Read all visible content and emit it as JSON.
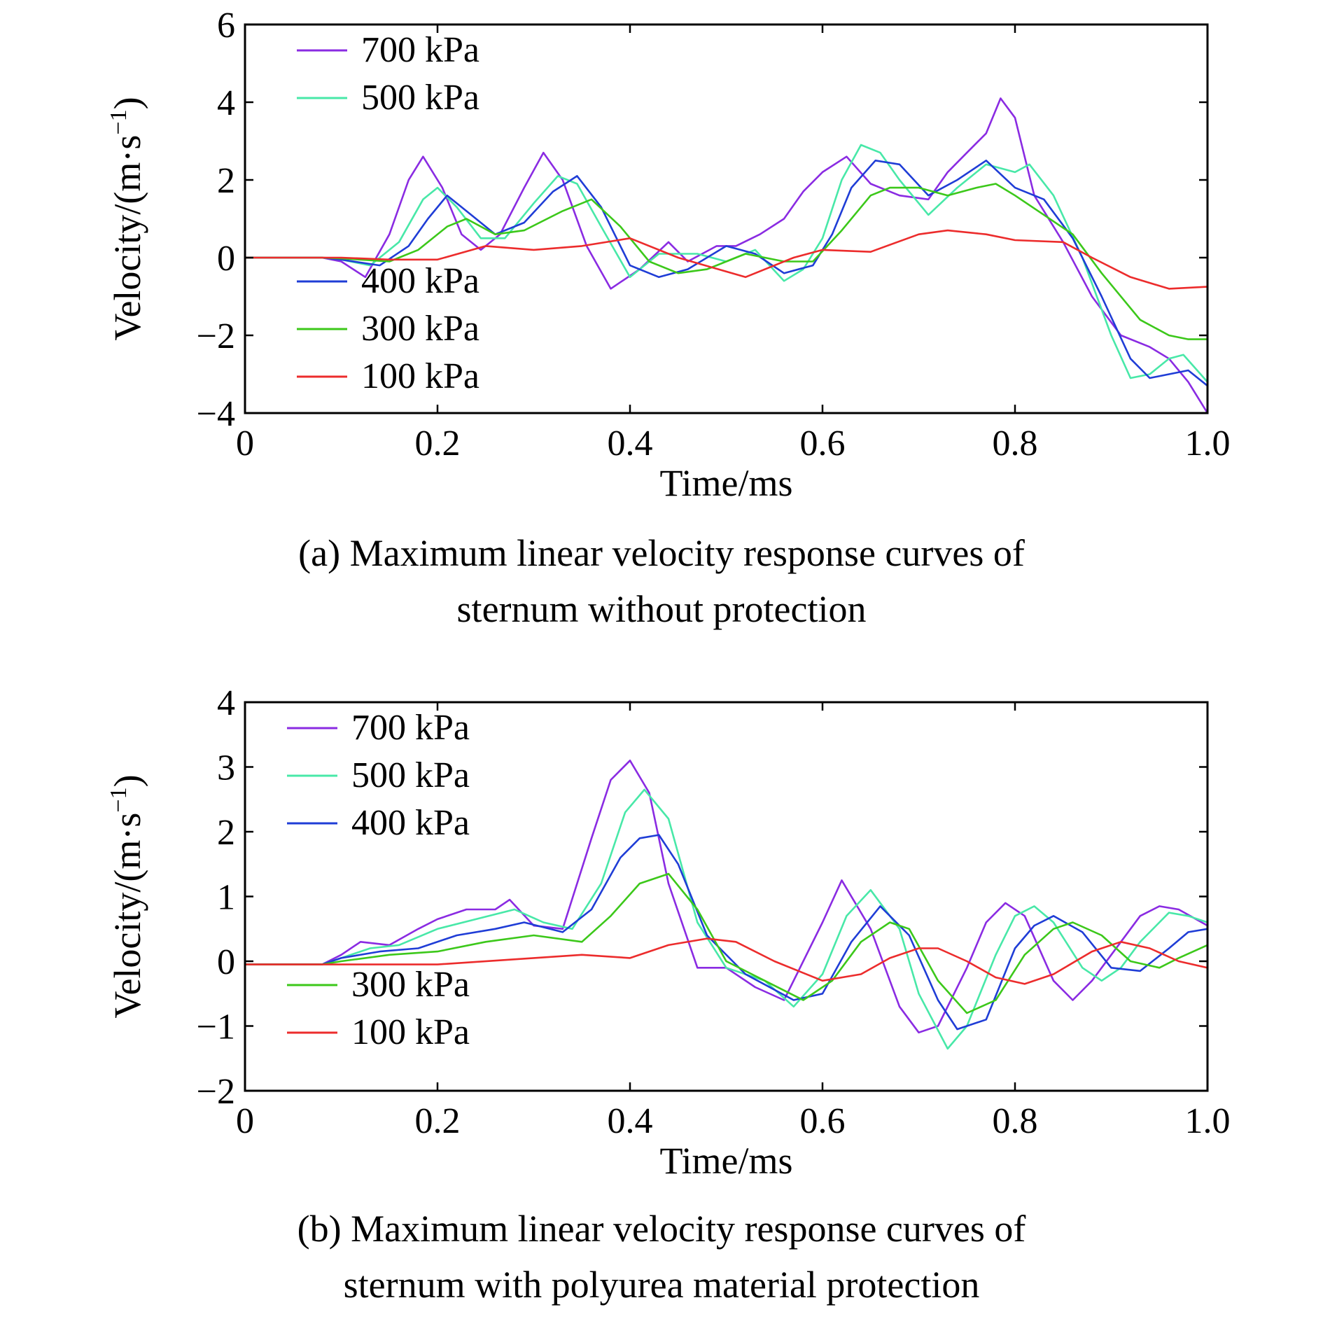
{
  "chart_data": [
    {
      "type": "line",
      "caption": [
        "(a) Maximum linear velocity response curves of",
        "sternum without protection"
      ],
      "xlabel": "Time/ms",
      "ylabel": "Velocity/(m·s",
      "ylabel_sup": "−1",
      "ylabel_close": ")",
      "xlim": [
        0,
        1.0
      ],
      "ylim": [
        -4,
        6
      ],
      "xticks": [
        0,
        0.2,
        0.4,
        0.6,
        0.8,
        1.0
      ],
      "xtick_labels": [
        "0",
        "0.2",
        "0.4",
        "0.6",
        "0.8",
        "1.0"
      ],
      "yticks": [
        -4,
        -2,
        0,
        2,
        4,
        6
      ],
      "ytick_labels": [
        "−4",
        "−2",
        "0",
        "2",
        "4",
        "6"
      ],
      "grid": false,
      "legend_groups": [
        {
          "placement": "top-left",
          "items": [
            "700 kPa",
            "500 kPa"
          ]
        },
        {
          "placement": "bottom-left",
          "items": [
            "400 kPa",
            "300 kPa",
            "100 kPa"
          ]
        }
      ],
      "series": [
        {
          "name": "700 kPa",
          "color": "#8a2be2",
          "x": [
            0,
            0.08,
            0.1,
            0.125,
            0.15,
            0.17,
            0.185,
            0.205,
            0.225,
            0.245,
            0.265,
            0.29,
            0.31,
            0.33,
            0.355,
            0.38,
            0.41,
            0.44,
            0.46,
            0.49,
            0.51,
            0.535,
            0.56,
            0.58,
            0.6,
            0.625,
            0.65,
            0.68,
            0.71,
            0.73,
            0.75,
            0.77,
            0.785,
            0.8,
            0.82,
            0.85,
            0.88,
            0.91,
            0.94,
            0.96,
            0.98,
            1.0
          ],
          "y": [
            0,
            0,
            -0.1,
            -0.5,
            0.6,
            2.0,
            2.6,
            1.8,
            0.6,
            0.2,
            0.6,
            1.8,
            2.7,
            2.0,
            0.3,
            -0.8,
            -0.3,
            0.4,
            -0.1,
            0.3,
            0.3,
            0.6,
            1.0,
            1.7,
            2.2,
            2.6,
            1.9,
            1.6,
            1.5,
            2.2,
            2.7,
            3.2,
            4.1,
            3.6,
            1.6,
            0.4,
            -1.0,
            -2.0,
            -2.3,
            -2.6,
            -3.2,
            -4.0
          ]
        },
        {
          "name": "500 kPa",
          "color": "#48e8a8",
          "x": [
            0,
            0.08,
            0.1,
            0.13,
            0.16,
            0.185,
            0.2,
            0.22,
            0.245,
            0.27,
            0.3,
            0.325,
            0.345,
            0.37,
            0.4,
            0.43,
            0.47,
            0.5,
            0.53,
            0.56,
            0.58,
            0.6,
            0.62,
            0.64,
            0.66,
            0.68,
            0.71,
            0.74,
            0.77,
            0.8,
            0.815,
            0.84,
            0.87,
            0.9,
            0.92,
            0.94,
            0.96,
            0.975,
            1.0
          ],
          "y": [
            0,
            0,
            -0.05,
            -0.2,
            0.4,
            1.5,
            1.8,
            1.3,
            0.5,
            0.5,
            1.4,
            2.1,
            1.9,
            0.8,
            -0.5,
            0.1,
            0.1,
            -0.1,
            0.2,
            -0.6,
            -0.3,
            0.5,
            2.0,
            2.9,
            2.7,
            2.0,
            1.1,
            1.8,
            2.4,
            2.2,
            2.4,
            1.6,
            0.0,
            -2.0,
            -3.1,
            -3.0,
            -2.6,
            -2.5,
            -3.2
          ]
        },
        {
          "name": "400 kPa",
          "color": "#1f3dd6",
          "x": [
            0,
            0.08,
            0.1,
            0.14,
            0.17,
            0.19,
            0.21,
            0.235,
            0.26,
            0.29,
            0.32,
            0.345,
            0.37,
            0.4,
            0.43,
            0.46,
            0.5,
            0.53,
            0.56,
            0.59,
            0.61,
            0.63,
            0.655,
            0.68,
            0.71,
            0.74,
            0.77,
            0.8,
            0.83,
            0.86,
            0.89,
            0.92,
            0.94,
            0.96,
            0.98,
            1.0
          ],
          "y": [
            0,
            0,
            -0.05,
            -0.2,
            0.3,
            1.0,
            1.6,
            1.1,
            0.6,
            0.9,
            1.7,
            2.1,
            1.3,
            -0.2,
            -0.5,
            -0.3,
            0.3,
            0.1,
            -0.4,
            -0.2,
            0.6,
            1.8,
            2.5,
            2.4,
            1.6,
            2.0,
            2.5,
            1.8,
            1.5,
            0.5,
            -1.0,
            -2.6,
            -3.1,
            -3.0,
            -2.9,
            -3.3
          ]
        },
        {
          "name": "300 kPa",
          "color": "#3cc81a",
          "x": [
            0,
            0.08,
            0.1,
            0.15,
            0.18,
            0.21,
            0.23,
            0.26,
            0.29,
            0.33,
            0.36,
            0.39,
            0.42,
            0.45,
            0.48,
            0.52,
            0.56,
            0.59,
            0.62,
            0.65,
            0.67,
            0.7,
            0.73,
            0.76,
            0.78,
            0.8,
            0.83,
            0.86,
            0.89,
            0.93,
            0.96,
            0.98,
            1.0
          ],
          "y": [
            0,
            0,
            -0.02,
            -0.1,
            0.2,
            0.8,
            1.0,
            0.6,
            0.7,
            1.2,
            1.5,
            0.8,
            -0.1,
            -0.4,
            -0.3,
            0.1,
            -0.1,
            -0.1,
            0.7,
            1.6,
            1.8,
            1.8,
            1.6,
            1.8,
            1.9,
            1.6,
            1.1,
            0.6,
            -0.4,
            -1.6,
            -2.0,
            -2.1,
            -2.1
          ]
        },
        {
          "name": "100 kPa",
          "color": "#ec2c2c",
          "x": [
            0,
            0.1,
            0.15,
            0.2,
            0.25,
            0.3,
            0.35,
            0.4,
            0.45,
            0.52,
            0.57,
            0.6,
            0.65,
            0.7,
            0.73,
            0.77,
            0.8,
            0.85,
            0.88,
            0.92,
            0.96,
            1.0
          ],
          "y": [
            0,
            0,
            -0.05,
            -0.05,
            0.3,
            0.2,
            0.3,
            0.5,
            0.0,
            -0.5,
            0.0,
            0.2,
            0.15,
            0.6,
            0.7,
            0.6,
            0.45,
            0.4,
            0.0,
            -0.5,
            -0.8,
            -0.75
          ]
        }
      ]
    },
    {
      "type": "line",
      "caption": [
        "(b) Maximum linear velocity response curves of",
        "sternum with polyurea material protection"
      ],
      "xlabel": "Time/ms",
      "ylabel": "Velocity/(m·s",
      "ylabel_sup": "−1",
      "ylabel_close": ")",
      "xlim": [
        0,
        1.0
      ],
      "ylim": [
        -2,
        4
      ],
      "xticks": [
        0,
        0.2,
        0.4,
        0.6,
        0.8,
        1.0
      ],
      "xtick_labels": [
        "0",
        "0.2",
        "0.4",
        "0.6",
        "0.8",
        "1.0"
      ],
      "yticks": [
        -2,
        -1,
        0,
        1,
        2,
        3,
        4
      ],
      "ytick_labels": [
        "−2",
        "−1",
        "0",
        "1",
        "2",
        "3",
        "4"
      ],
      "grid": false,
      "legend_groups": [
        {
          "placement": "top-left",
          "items": [
            "700 kPa",
            "500 kPa",
            "400 kPa"
          ]
        },
        {
          "placement": "bottom-left",
          "items": [
            "300 kPa",
            "100 kPa"
          ]
        }
      ],
      "series": [
        {
          "name": "700 kPa",
          "color": "#8a2be2",
          "x": [
            0,
            0.08,
            0.1,
            0.12,
            0.15,
            0.18,
            0.2,
            0.23,
            0.26,
            0.275,
            0.3,
            0.33,
            0.36,
            0.38,
            0.4,
            0.42,
            0.44,
            0.47,
            0.5,
            0.53,
            0.56,
            0.6,
            0.62,
            0.65,
            0.68,
            0.7,
            0.72,
            0.75,
            0.77,
            0.79,
            0.81,
            0.84,
            0.86,
            0.88,
            0.91,
            0.93,
            0.95,
            0.97,
            1.0
          ],
          "y": [
            -0.05,
            -0.05,
            0.1,
            0.3,
            0.25,
            0.5,
            0.65,
            0.8,
            0.8,
            0.95,
            0.55,
            0.5,
            1.9,
            2.8,
            3.1,
            2.6,
            1.2,
            -0.1,
            -0.1,
            -0.4,
            -0.6,
            0.6,
            1.25,
            0.5,
            -0.7,
            -1.1,
            -1.0,
            -0.1,
            0.6,
            0.9,
            0.7,
            -0.3,
            -0.6,
            -0.3,
            0.3,
            0.7,
            0.85,
            0.8,
            0.55
          ]
        },
        {
          "name": "500 kPa",
          "color": "#48e8a8",
          "x": [
            0,
            0.08,
            0.1,
            0.13,
            0.16,
            0.2,
            0.24,
            0.28,
            0.31,
            0.34,
            0.37,
            0.395,
            0.415,
            0.44,
            0.47,
            0.5,
            0.54,
            0.57,
            0.6,
            0.625,
            0.65,
            0.68,
            0.7,
            0.73,
            0.75,
            0.78,
            0.8,
            0.82,
            0.84,
            0.87,
            0.89,
            0.91,
            0.93,
            0.96,
            0.98,
            1.0
          ],
          "y": [
            -0.05,
            -0.05,
            0.05,
            0.2,
            0.25,
            0.5,
            0.65,
            0.8,
            0.6,
            0.5,
            1.2,
            2.3,
            2.65,
            2.2,
            0.6,
            -0.1,
            -0.3,
            -0.7,
            -0.2,
            0.7,
            1.1,
            0.5,
            -0.5,
            -1.35,
            -1.0,
            0.1,
            0.7,
            0.85,
            0.6,
            -0.1,
            -0.3,
            -0.1,
            0.3,
            0.75,
            0.7,
            0.6
          ]
        },
        {
          "name": "400 kPa",
          "color": "#1f3dd6",
          "x": [
            0,
            0.08,
            0.1,
            0.14,
            0.18,
            0.22,
            0.26,
            0.29,
            0.33,
            0.36,
            0.39,
            0.41,
            0.43,
            0.45,
            0.48,
            0.52,
            0.57,
            0.6,
            0.63,
            0.66,
            0.69,
            0.72,
            0.74,
            0.77,
            0.8,
            0.82,
            0.84,
            0.87,
            0.9,
            0.93,
            0.96,
            0.98,
            1.0
          ],
          "y": [
            -0.05,
            -0.05,
            0.05,
            0.15,
            0.2,
            0.4,
            0.5,
            0.6,
            0.45,
            0.8,
            1.6,
            1.9,
            1.95,
            1.5,
            0.4,
            -0.2,
            -0.6,
            -0.5,
            0.3,
            0.85,
            0.4,
            -0.6,
            -1.05,
            -0.9,
            0.2,
            0.55,
            0.7,
            0.45,
            -0.1,
            -0.15,
            0.2,
            0.45,
            0.5
          ]
        },
        {
          "name": "300 kPa",
          "color": "#3cc81a",
          "x": [
            0,
            0.08,
            0.1,
            0.15,
            0.2,
            0.25,
            0.3,
            0.35,
            0.38,
            0.41,
            0.44,
            0.47,
            0.5,
            0.54,
            0.58,
            0.61,
            0.64,
            0.67,
            0.69,
            0.72,
            0.75,
            0.78,
            0.81,
            0.84,
            0.86,
            0.89,
            0.92,
            0.95,
            0.97,
            1.0
          ],
          "y": [
            -0.05,
            -0.05,
            0.0,
            0.1,
            0.15,
            0.3,
            0.4,
            0.3,
            0.7,
            1.2,
            1.35,
            0.8,
            0.0,
            -0.3,
            -0.6,
            -0.3,
            0.3,
            0.6,
            0.5,
            -0.3,
            -0.8,
            -0.6,
            0.1,
            0.5,
            0.6,
            0.4,
            0.0,
            -0.1,
            0.05,
            0.25
          ]
        },
        {
          "name": "100 kPa",
          "color": "#ec2c2c",
          "x": [
            0,
            0.1,
            0.2,
            0.3,
            0.35,
            0.4,
            0.44,
            0.48,
            0.51,
            0.55,
            0.6,
            0.64,
            0.67,
            0.7,
            0.72,
            0.75,
            0.78,
            0.81,
            0.84,
            0.88,
            0.91,
            0.94,
            0.97,
            1.0
          ],
          "y": [
            -0.05,
            -0.05,
            -0.05,
            0.05,
            0.1,
            0.05,
            0.25,
            0.35,
            0.3,
            0.0,
            -0.3,
            -0.2,
            0.05,
            0.2,
            0.2,
            0.0,
            -0.25,
            -0.35,
            -0.2,
            0.15,
            0.3,
            0.2,
            0.0,
            -0.1
          ]
        }
      ]
    }
  ]
}
